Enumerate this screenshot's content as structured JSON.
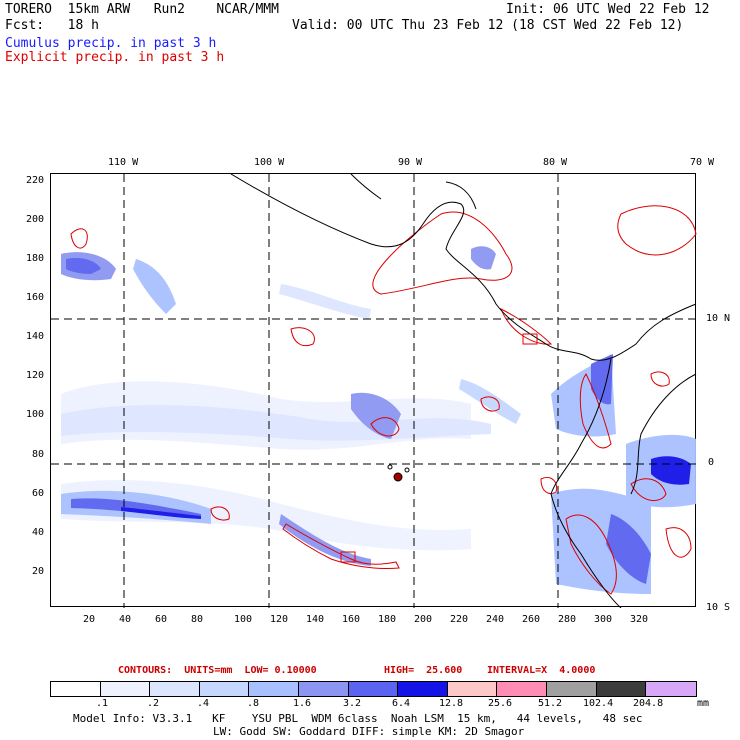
{
  "header": {
    "line1_left": "TORERO  15km ARW   Run2    NCAR/MMM",
    "line1_right": "Init: 06 UTC Wed 22 Feb 12",
    "line2_left": "Fcst:   18 h",
    "line2_right": "Valid: 00 UTC Thu 23 Feb 12 (18 CST Wed 22 Feb 12)"
  },
  "legend": {
    "cumulus": "Cumulus precip. in past 3 h",
    "explicit": "Explicit precip. in past 3 h",
    "cumulus_color": "#1a1aff",
    "explicit_color": "#dd0000"
  },
  "map": {
    "top_lon_labels": [
      "110 W",
      "100 W",
      "90 W",
      "80 W",
      "70 W"
    ],
    "right_lat_labels": [
      "10 N",
      "0",
      "10 S"
    ],
    "left_grid_labels": [
      "220",
      "200",
      "180",
      "160",
      "140",
      "120",
      "100",
      "80",
      "60",
      "40",
      "20"
    ],
    "bottom_grid_labels": [
      "20",
      "40",
      "60",
      "80",
      "100",
      "120",
      "140",
      "160",
      "180",
      "200",
      "220",
      "240",
      "260",
      "280",
      "300",
      "320"
    ]
  },
  "contour_info": {
    "contours": "CONTOURS:  UNITS=mm  LOW= 0.10000",
    "high": "HIGH=  25.600",
    "interval": "INTERVAL=X  4.0000"
  },
  "colorbar": {
    "labels": [
      ".1",
      ".2",
      ".4",
      ".8",
      "1.6",
      "3.2",
      "6.4",
      "12.8",
      "25.6",
      "51.2",
      "102.4",
      "204.8"
    ],
    "units": "mm",
    "colors": [
      "#ffffff",
      "#eef2ff",
      "#dde6ff",
      "#c6d7ff",
      "#a9c0ff",
      "#8c96f2",
      "#5a64f0",
      "#1414e6",
      "#ffc8c8",
      "#ff8cb4",
      "#a0a0a0",
      "#3c3c3c",
      "#d8a8f8"
    ]
  },
  "footer": {
    "line1": "Model Info: V3.3.1   KF    YSU PBL  WDM 6class  Noah LSM  15 km,   44 levels,   48 sec",
    "line2": "LW: Godd SW: Goddard DIFF: simple KM: 2D Smagor"
  }
}
